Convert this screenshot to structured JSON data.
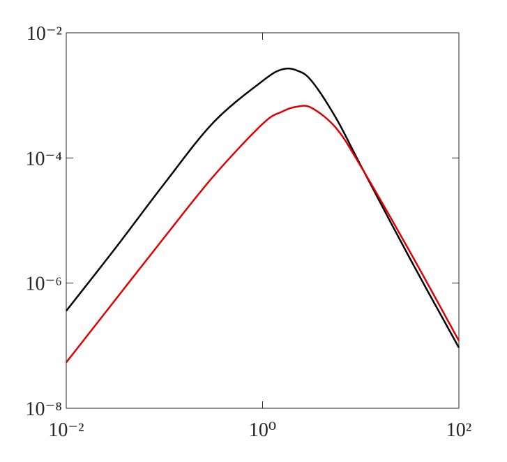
{
  "chart_data": {
    "type": "line",
    "xscale": "log",
    "yscale": "log",
    "xlim": [
      0.01,
      100
    ],
    "ylim": [
      1e-08,
      0.01
    ],
    "xticks": [
      {
        "value": 0.01,
        "label": "10⁻²"
      },
      {
        "value": 1,
        "label": "10⁰"
      },
      {
        "value": 100,
        "label": "10²"
      }
    ],
    "yticks": [
      {
        "value": 1e-08,
        "label": "10⁻⁸"
      },
      {
        "value": 1e-06,
        "label": "10⁻⁶"
      },
      {
        "value": 0.0001,
        "label": "10⁻⁴"
      },
      {
        "value": 0.01,
        "label": "10⁻²"
      }
    ],
    "x": [
      0.01,
      0.0316,
      0.1,
      0.316,
      1,
      1.58,
      2.24,
      3.16,
      5.62,
      10,
      31.6,
      100
    ],
    "series": [
      {
        "color": "#000000",
        "values": [
          3.6e-07,
          3.6e-06,
          3.9e-05,
          0.00037,
          0.0017,
          0.0026,
          0.0025,
          0.0017,
          0.00043,
          7.6e-05,
          2.5e-06,
          9.3e-08
        ]
      },
      {
        "color": "#e00000",
        "values": [
          5.4e-08,
          5.4e-07,
          5.4e-06,
          5.1e-05,
          0.00035,
          0.00055,
          0.00066,
          0.00063,
          0.0003,
          7.4e-05,
          3.2e-06,
          1.2e-07
        ]
      }
    ]
  }
}
